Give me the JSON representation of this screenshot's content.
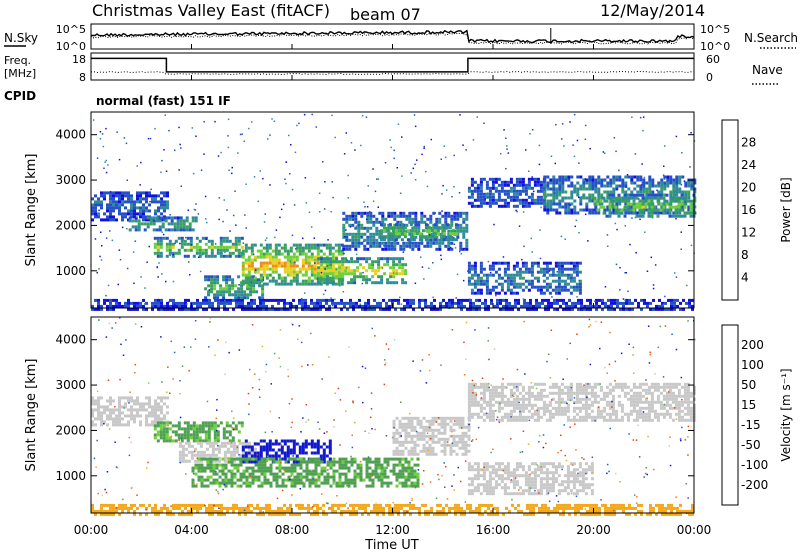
{
  "header": {
    "title": "Christmas Valley East (fitACF)",
    "beam": "beam 07",
    "date": "12/May/2014",
    "cpid_label": "CPID",
    "cpid_value": "normal (fast) 151 IF"
  },
  "chart_data": [
    {
      "type": "line",
      "name": "noise-panel",
      "left_label": "N.Sky",
      "right_label": "N.Search",
      "left_ticks": [
        "10^5",
        "10^0"
      ],
      "right_ticks": [
        "10^5",
        "10^0"
      ],
      "scale": "log"
    },
    {
      "type": "line",
      "name": "frequency-nave-panel",
      "left_label_1": "Freq.",
      "left_label_2": "[MHz]",
      "right_label": "Nave",
      "left_ticks": [
        18,
        8
      ],
      "right_ticks": [
        60,
        0
      ],
      "ylim_left": [
        8,
        18
      ],
      "ylim_right": [
        0,
        60
      ],
      "freq_steps": [
        {
          "t": 0,
          "v": 16.0
        },
        {
          "t": 3.0,
          "v": 16.0
        },
        {
          "t": 3.0,
          "v": 11.0
        },
        {
          "t": 15.0,
          "v": 11.0
        },
        {
          "t": 15.0,
          "v": 16.0
        },
        {
          "t": 24.0,
          "v": 16.0
        }
      ]
    },
    {
      "type": "heatmap",
      "name": "power-panel",
      "ylabel": "Slant Range [km]",
      "yticks": [
        1000,
        2000,
        3000,
        4000
      ],
      "ylim": [
        180,
        4500
      ],
      "xlim": [
        0,
        24
      ],
      "colorbar_label": "Power [dB]",
      "colorbar_ticks": [
        4,
        8,
        12,
        16,
        20,
        24,
        28
      ],
      "colorbar_colors": [
        "#1010e0",
        "#2650c8",
        "#2f8a9a",
        "#3aa060",
        "#6fcf3a",
        "#e8d020",
        "#f08a10",
        "#e81818"
      ],
      "features": [
        {
          "t0": 0.0,
          "t1": 3.0,
          "r0": 2150,
          "r1": 2750,
          "p": 8
        },
        {
          "t0": 1.5,
          "t1": 4.2,
          "r0": 1900,
          "r1": 2200,
          "p": 15
        },
        {
          "t0": 2.5,
          "t1": 6.0,
          "r0": 1350,
          "r1": 1750,
          "p": 18
        },
        {
          "t0": 4.5,
          "t1": 6.8,
          "r0": 400,
          "r1": 900,
          "p": 16
        },
        {
          "t0": 6.0,
          "t1": 10.0,
          "r0": 700,
          "r1": 1600,
          "p": 24
        },
        {
          "t0": 9.0,
          "t1": 12.5,
          "r0": 750,
          "r1": 1300,
          "p": 22
        },
        {
          "t0": 10.0,
          "t1": 15.0,
          "r0": 1500,
          "r1": 2300,
          "p": 12
        },
        {
          "t0": 11.5,
          "t1": 14.5,
          "r0": 1700,
          "r1": 2050,
          "p": 18
        },
        {
          "t0": 15.0,
          "t1": 18.0,
          "r0": 2400,
          "r1": 3050,
          "p": 8
        },
        {
          "t0": 18.0,
          "t1": 24.0,
          "r0": 2300,
          "r1": 3100,
          "p": 12
        },
        {
          "t0": 20.0,
          "t1": 24.0,
          "r0": 2200,
          "r1": 2700,
          "p": 18
        },
        {
          "t0": 15.0,
          "t1": 19.5,
          "r0": 500,
          "r1": 1200,
          "p": 10
        },
        {
          "t0": 0.0,
          "t1": 24.0,
          "r0": 180,
          "r1": 380,
          "p": 6
        }
      ]
    },
    {
      "type": "heatmap",
      "name": "velocity-panel",
      "ylabel": "Slant Range [km]",
      "yticks": [
        1000,
        2000,
        3000,
        4000
      ],
      "ylim": [
        180,
        4500
      ],
      "xlim": [
        0,
        24
      ],
      "xlabel": "Time UT",
      "xticks": [
        "00:00",
        "04:00",
        "08:00",
        "12:00",
        "16:00",
        "20:00",
        "00:00"
      ],
      "colorbar_label": "Velocity [m s⁻¹]",
      "colorbar_ticks": [
        "200",
        "100",
        "50",
        "15",
        "-15",
        "-50",
        "-100",
        "-200"
      ],
      "colorbar_colors": [
        "#1018d0",
        "#2a5ad8",
        "#4fa050",
        "#6ed23a",
        "#c8c8c8",
        "#f4a81a",
        "#f07818",
        "#e84010",
        "#e80808"
      ],
      "ground_scatter_color": "#c8c8c8",
      "features": [
        {
          "t0": 0.0,
          "t1": 3.0,
          "r0": 2150,
          "r1": 2750,
          "v": 0
        },
        {
          "t0": 2.5,
          "t1": 6.0,
          "r0": 1750,
          "r1": 2200,
          "v": 40
        },
        {
          "t0": 3.5,
          "t1": 6.5,
          "r0": 1300,
          "r1": 1750,
          "v": 0
        },
        {
          "t0": 6.0,
          "t1": 9.5,
          "r0": 1300,
          "r1": 1800,
          "v": 180
        },
        {
          "t0": 4.0,
          "t1": 13.0,
          "r0": 750,
          "r1": 1400,
          "v": 40
        },
        {
          "t0": 12.0,
          "t1": 15.0,
          "r0": 1500,
          "r1": 2300,
          "v": 0
        },
        {
          "t0": 15.0,
          "t1": 24.0,
          "r0": 2250,
          "r1": 3050,
          "v": 0
        },
        {
          "t0": 15.0,
          "t1": 20.0,
          "r0": 600,
          "r1": 1300,
          "v": 0
        },
        {
          "t0": 0.0,
          "t1": 24.0,
          "r0": 180,
          "r1": 380,
          "v": -30
        }
      ]
    }
  ]
}
